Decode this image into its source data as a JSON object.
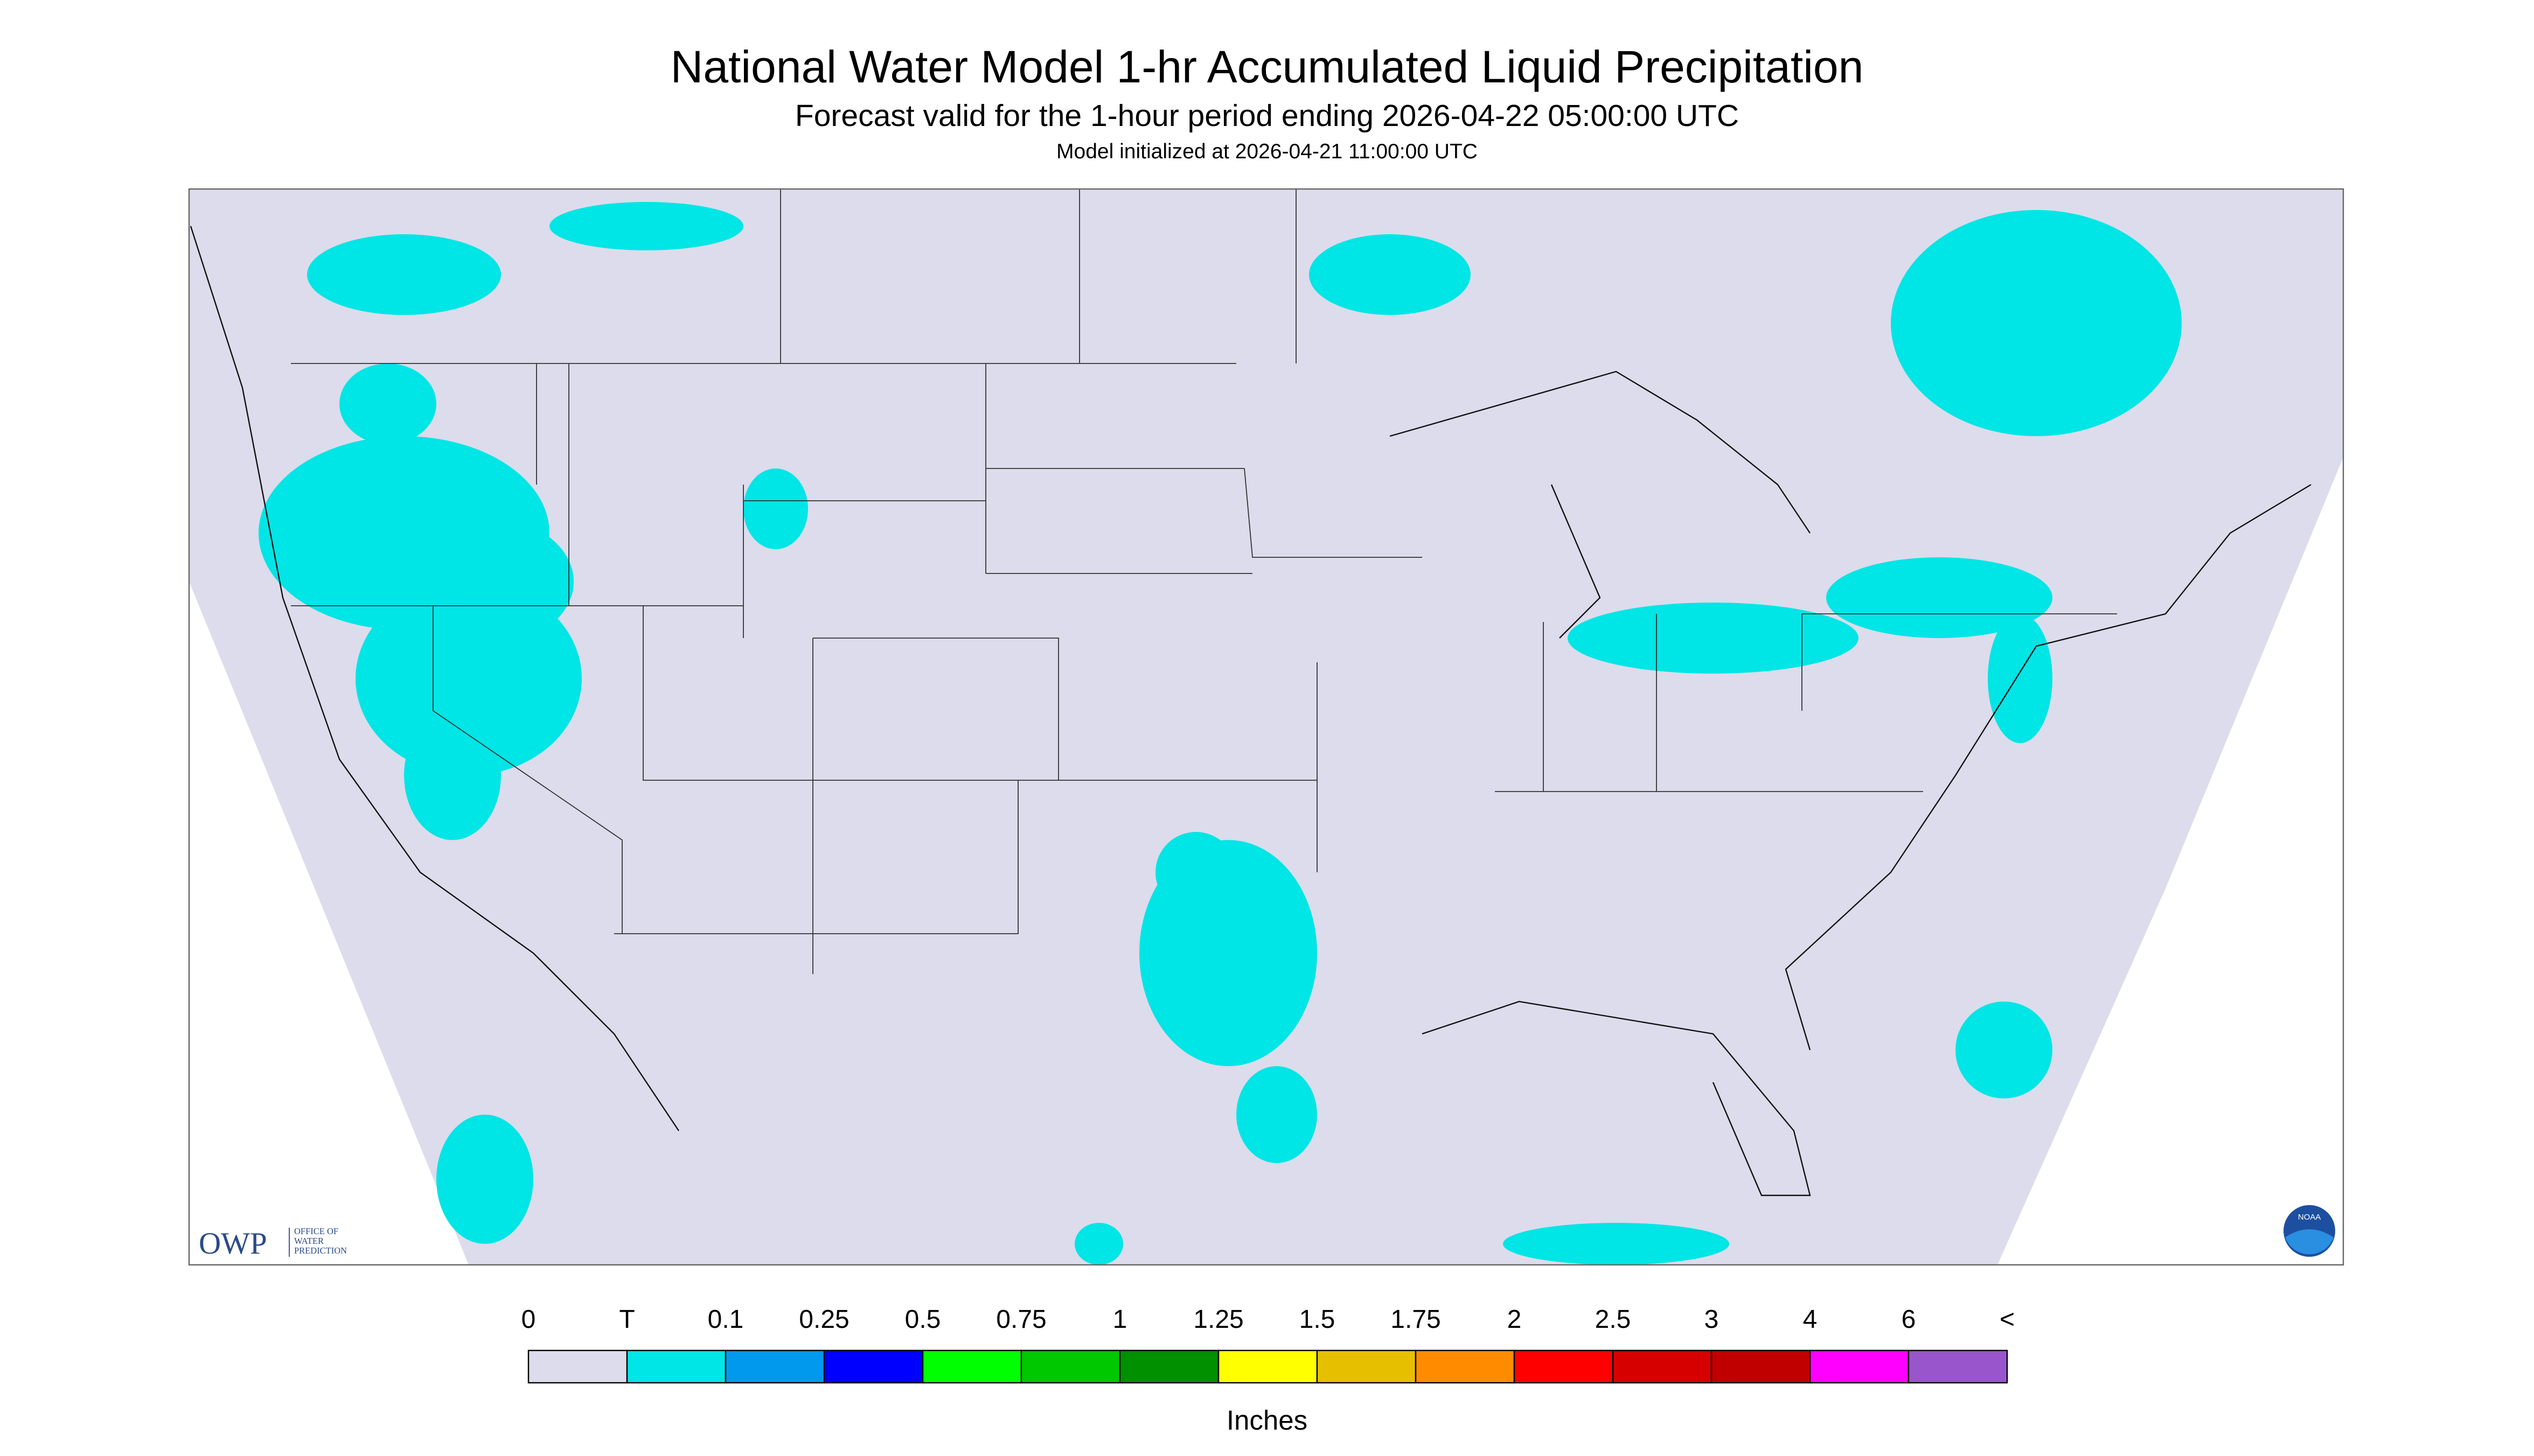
{
  "header": {
    "title": "National Water Model 1-hr Accumulated Liquid Precipitation",
    "subtitle": "Forecast valid for the 1-hour period ending 2026-04-22 05:00:00 UTC",
    "init": "Model initialized at 2026-04-21 11:00:00 UTC"
  },
  "logos": {
    "owp": "OWP",
    "owp_name": [
      "OFFICE OF",
      "WATER",
      "PREDICTION"
    ],
    "noaa": "NOAA"
  },
  "legend": {
    "labels": [
      "0",
      "T",
      "0.1",
      "0.25",
      "0.5",
      "0.75",
      "1",
      "1.25",
      "1.5",
      "1.75",
      "2",
      "2.5",
      "3",
      "4",
      "6",
      "<"
    ],
    "colors": [
      "#dcdcec",
      "#00e5e5",
      "#0099ee",
      "#0000ff",
      "#00ff00",
      "#00c800",
      "#009000",
      "#ffff00",
      "#e6c000",
      "#ff8c00",
      "#ff0000",
      "#d60000",
      "#c00000",
      "#ff00ff",
      "#9955cc"
    ],
    "unit": "Inches"
  }
}
